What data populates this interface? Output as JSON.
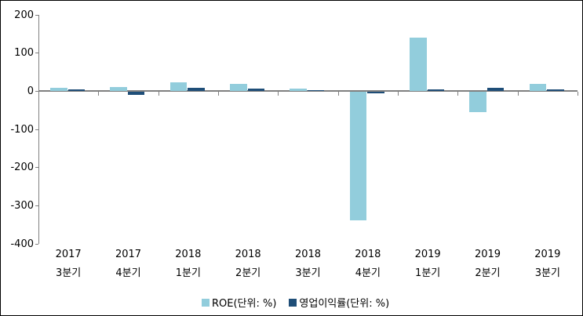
{
  "frame": {
    "background": "#ffffff",
    "border_color": "#000000"
  },
  "chart_data": {
    "type": "bar",
    "title": "",
    "xlabel": "",
    "ylabel": "",
    "categories": [
      [
        "2017",
        "3분기"
      ],
      [
        "2017",
        "4분기"
      ],
      [
        "2018",
        "1분기"
      ],
      [
        "2018",
        "2분기"
      ],
      [
        "2018",
        "3분기"
      ],
      [
        "2018",
        "4분기"
      ],
      [
        "2019",
        "1분기"
      ],
      [
        "2019",
        "2분기"
      ],
      [
        "2019",
        "3분기"
      ]
    ],
    "series": [
      {
        "name": "ROE(단위: %)",
        "color": "#92CDDC",
        "values": [
          9,
          10,
          22,
          18,
          7,
          -336,
          140,
          -53,
          18
        ]
      },
      {
        "name": "영업이익률(단위: %)",
        "color": "#1F4E78",
        "values": [
          4,
          -8,
          8,
          6,
          2,
          -4,
          4,
          9,
          5
        ]
      }
    ],
    "y_axis": {
      "min": -400,
      "max": 200,
      "tick_step": 100,
      "ticks": [
        200,
        100,
        0,
        -100,
        -200,
        -300,
        -400
      ]
    },
    "grid": false,
    "legend_position": "bottom",
    "axis_color": "#808080",
    "text_color": "#000000"
  }
}
